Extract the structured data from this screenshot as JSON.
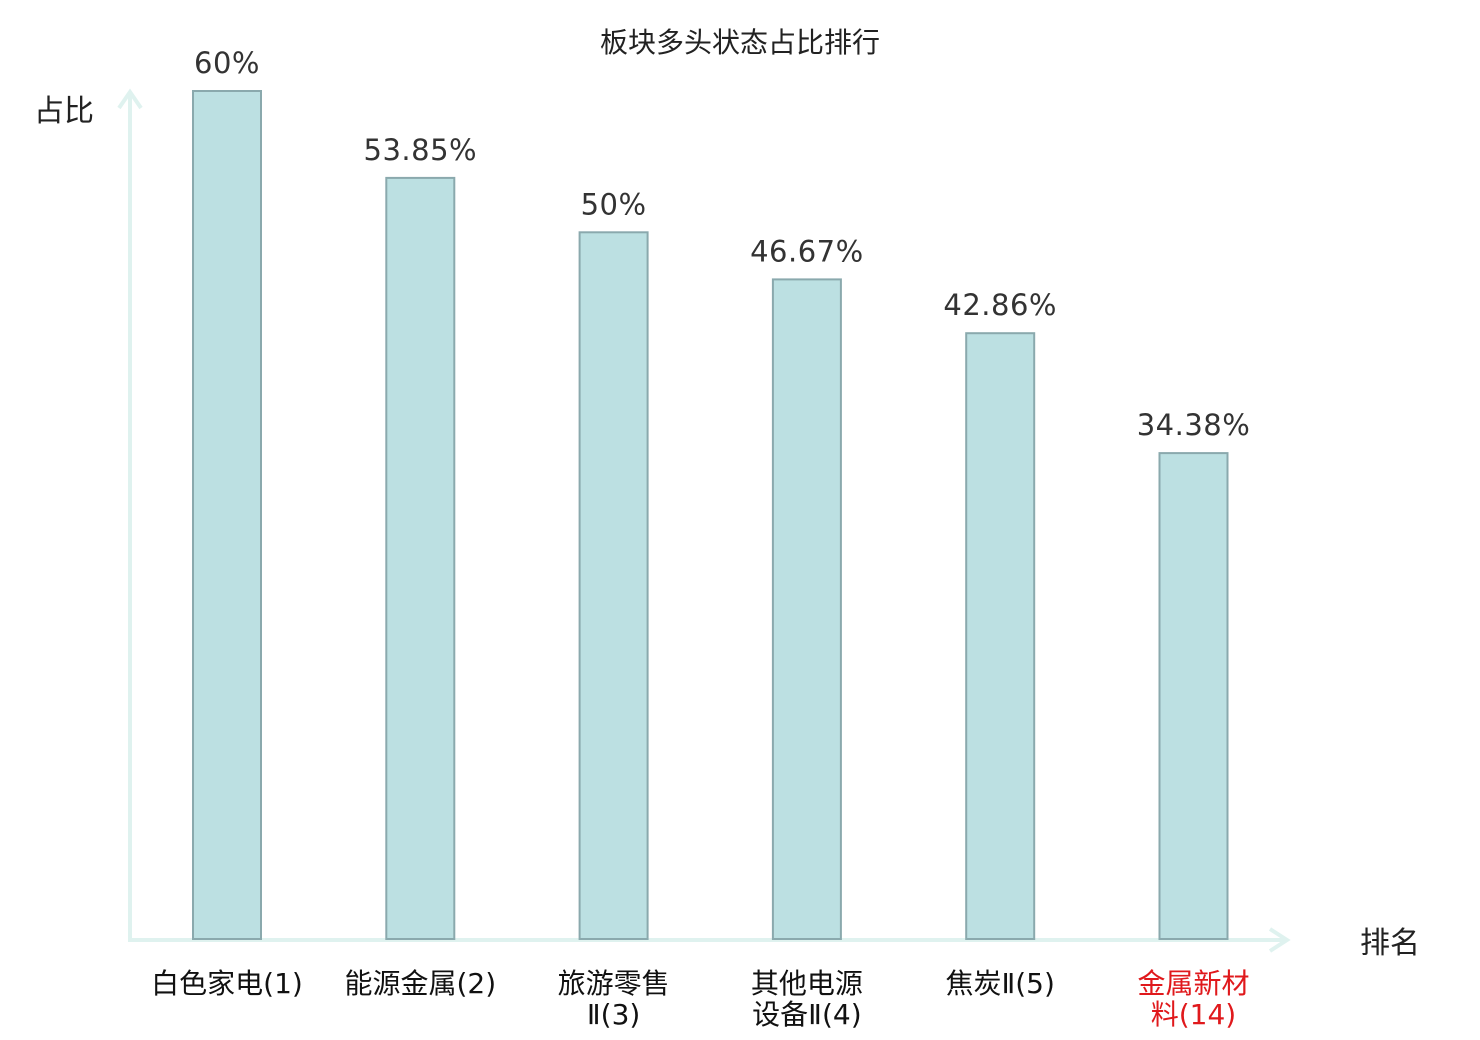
{
  "chart_data": {
    "type": "bar",
    "title": "板块多头状态占比排行",
    "ylabel": "占比",
    "xlabel": "排名",
    "categories": [
      [
        "白色家电(1)"
      ],
      [
        "能源金属(2)"
      ],
      [
        "旅游零售",
        "Ⅱ(3)"
      ],
      [
        "其他电源",
        "设备Ⅱ(4)"
      ],
      [
        "焦炭Ⅱ(5)"
      ],
      [
        "金属新材",
        "料(14)"
      ]
    ],
    "values": [
      60,
      53.85,
      50,
      46.67,
      42.86,
      34.38
    ],
    "value_labels": [
      "60%",
      "53.85%",
      "50%",
      "46.67%",
      "42.86%",
      "34.38%"
    ],
    "highlight_index": 5,
    "ylim": [
      0,
      60
    ],
    "grid": false,
    "colors": {
      "bar_fill": "#bce0e2",
      "bar_stroke": "#8aa9ad",
      "axis": "#dff2ef",
      "highlight_text": "#e0191c"
    }
  }
}
